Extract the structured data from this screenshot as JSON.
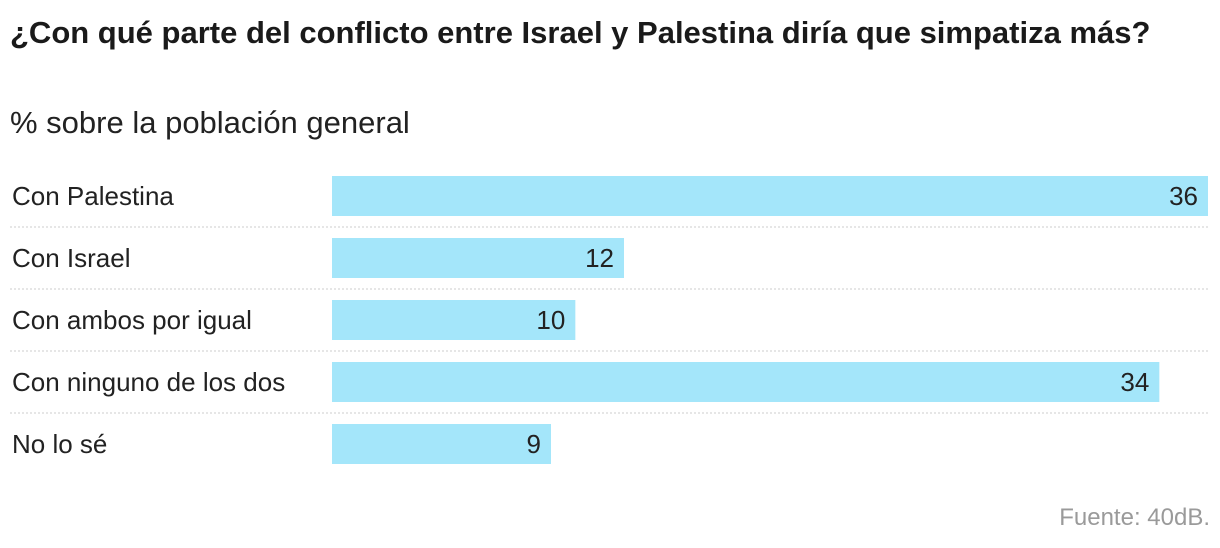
{
  "chart_data": {
    "type": "bar",
    "orientation": "horizontal",
    "title": "¿Con qué parte del conflicto entre Israel y Palestina diría que simpatiza más?",
    "subtitle": "% sobre la población general",
    "categories": [
      "Con Palestina",
      "Con Israel",
      "Con ambos por igual",
      "Con ninguno de los dos",
      "No lo sé"
    ],
    "values": [
      36,
      12,
      10,
      34,
      9
    ],
    "xlim": [
      0,
      36
    ],
    "grid": false,
    "source": "Fuente: 40dB."
  },
  "colors": {
    "bar": "#a4e6fa",
    "separator": "#dddddd",
    "text": "#222222",
    "source": "#9a9a9a"
  }
}
